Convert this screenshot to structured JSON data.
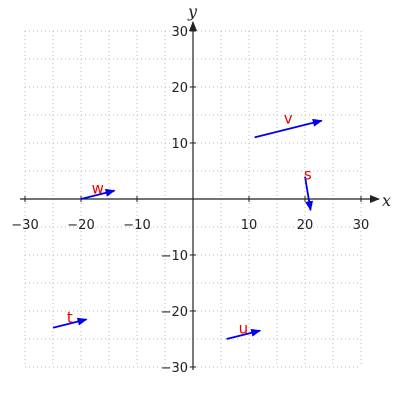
{
  "chart_data": {
    "type": "vector-field",
    "xlabel": "x",
    "ylabel": "y",
    "xlim": [
      -30,
      30
    ],
    "ylim": [
      -30,
      30
    ],
    "x_ticks": [
      -30,
      -20,
      -10,
      10,
      20,
      30
    ],
    "y_ticks": [
      -30,
      -20,
      -10,
      10,
      20,
      30
    ],
    "grid": true,
    "vector_color": "#0000ee",
    "label_color": "#ee0000",
    "vectors": [
      {
        "name": "v",
        "x0": 11,
        "y0": 11,
        "x1": 23,
        "y1": 14
      },
      {
        "name": "s",
        "x0": 20,
        "y0": 4,
        "x1": 21,
        "y1": -2
      },
      {
        "name": "w",
        "x0": -20,
        "y0": 0,
        "x1": -14,
        "y1": 1.5
      },
      {
        "name": "t",
        "x0": -25,
        "y0": -23,
        "x1": -19,
        "y1": -21.5
      },
      {
        "name": "u",
        "x0": 6,
        "y0": -25,
        "x1": 12,
        "y1": -23.5
      }
    ]
  }
}
